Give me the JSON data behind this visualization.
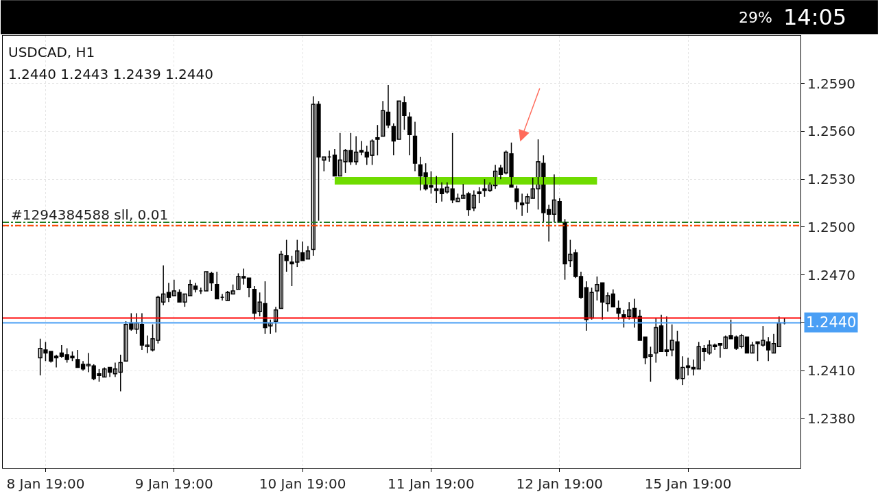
{
  "chart_data": {
    "type": "candlestick",
    "title": "USDCAD, H1",
    "subtitle": "1.2440 1.2443 1.2439 1.2440",
    "annotations": [
      "29%",
      "14:05"
    ],
    "categories": [
      null,
      "8 Jan 19:00",
      null,
      null,
      null,
      null,
      null,
      null,
      null,
      null,
      null,
      null,
      null,
      null,
      null,
      null,
      null,
      null,
      null,
      null,
      null,
      null,
      null,
      null,
      null,
      "9 Jan 19:00",
      null,
      null,
      null,
      null,
      null,
      null,
      null,
      null,
      null,
      null,
      null,
      null,
      null,
      null,
      null,
      null,
      null,
      null,
      null,
      null,
      null,
      null,
      null,
      "10 Jan 19:00",
      null,
      null,
      null,
      null,
      null,
      null,
      null,
      null,
      null,
      null,
      null,
      null,
      null,
      null,
      null,
      null,
      null,
      null,
      null,
      null,
      null,
      null,
      null,
      "11 Jan 19:00",
      null,
      null,
      null,
      null,
      null,
      null,
      null,
      null,
      null,
      null,
      null,
      null,
      null,
      null,
      null,
      null,
      null,
      null,
      null,
      null,
      null,
      null,
      null,
      "12 Jan 19:00",
      null,
      null,
      null,
      null,
      null,
      null,
      null,
      null,
      null,
      null,
      null,
      null,
      null,
      null,
      null,
      null,
      null,
      null,
      null,
      null,
      null,
      null,
      null,
      "15 Jan 19:00",
      null,
      null,
      null,
      null,
      null,
      null,
      null,
      null,
      null,
      null,
      null,
      null,
      null,
      null,
      null,
      null,
      null,
      null
    ],
    "color": "#000000",
    "ohlc": [
      [
        1.2418,
        1.243,
        1.2407,
        1.2424
      ],
      [
        1.2423,
        1.2428,
        1.2416,
        1.2421
      ],
      [
        1.2422,
        1.2422,
        1.2415,
        1.2416
      ],
      [
        1.2419,
        1.242,
        1.2412,
        1.2418
      ],
      [
        1.2421,
        1.2426,
        1.2418,
        1.2419
      ],
      [
        1.242,
        1.2424,
        1.2415,
        1.2417
      ],
      [
        1.2419,
        1.2422,
        1.2416,
        1.2418
      ],
      [
        1.2417,
        1.2423,
        1.2412,
        1.2412
      ],
      [
        1.2414,
        1.2416,
        1.241,
        1.2411
      ],
      [
        1.2413,
        1.2421,
        1.2409,
        1.2414
      ],
      [
        1.2413,
        1.2414,
        1.2404,
        1.2405
      ],
      [
        1.2408,
        1.2411,
        1.2403,
        1.2407
      ],
      [
        1.2406,
        1.2412,
        1.2406,
        1.2411
      ],
      [
        1.2412,
        1.2412,
        1.2406,
        1.2409
      ],
      [
        1.2408,
        1.2415,
        1.2406,
        1.2411
      ],
      [
        1.2409,
        1.242,
        1.2397,
        1.2415
      ],
      [
        1.2416,
        1.2441,
        1.2416,
        1.2439
      ],
      [
        1.244,
        1.2446,
        1.2435,
        1.2436
      ],
      [
        1.2436,
        1.2446,
        1.2433,
        1.244
      ],
      [
        1.2439,
        1.2446,
        1.2423,
        1.2426
      ],
      [
        1.2425,
        1.2432,
        1.2421,
        1.2426
      ],
      [
        1.2423,
        1.2439,
        1.2422,
        1.243
      ],
      [
        1.2429,
        1.2457,
        1.2427,
        1.2456
      ],
      [
        1.2453,
        1.2476,
        1.2451,
        1.2458
      ],
      [
        1.2459,
        1.2465,
        1.2453,
        1.2456
      ],
      [
        1.2457,
        1.2467,
        1.2457,
        1.246
      ],
      [
        1.2459,
        1.2461,
        1.2453,
        1.2453
      ],
      [
        1.2453,
        1.2458,
        1.245,
        1.2458
      ],
      [
        1.2457,
        1.2467,
        1.2457,
        1.2464
      ],
      [
        1.2463,
        1.2465,
        1.2459,
        1.2461
      ],
      [
        1.246,
        1.2462,
        1.2458,
        1.246
      ],
      [
        1.246,
        1.2472,
        1.246,
        1.2472
      ],
      [
        1.2471,
        1.2472,
        1.246,
        1.2465
      ],
      [
        1.2464,
        1.2472,
        1.2455,
        1.2455
      ],
      [
        1.2456,
        1.2458,
        1.2454,
        1.2456
      ],
      [
        1.2454,
        1.246,
        1.2454,
        1.2459
      ],
      [
        1.2458,
        1.2464,
        1.2458,
        1.246
      ],
      [
        1.2461,
        1.2471,
        1.2461,
        1.2469
      ],
      [
        1.2469,
        1.2474,
        1.2464,
        1.2468
      ],
      [
        1.2468,
        1.2468,
        1.2456,
        1.2462
      ],
      [
        1.2461,
        1.2463,
        1.2442,
        1.2446
      ],
      [
        1.2447,
        1.2459,
        1.2444,
        1.2453
      ],
      [
        1.2452,
        1.2466,
        1.2433,
        1.2437
      ],
      [
        1.2438,
        1.2442,
        1.2433,
        1.244
      ],
      [
        1.2441,
        1.245,
        1.2434,
        1.2448
      ],
      [
        1.2449,
        1.2485,
        1.2449,
        1.2483
      ],
      [
        1.2482,
        1.2492,
        1.2472,
        1.2479
      ],
      [
        1.2478,
        1.2482,
        1.2463,
        1.2477
      ],
      [
        1.2478,
        1.2492,
        1.2475,
        1.2485
      ],
      [
        1.2484,
        1.2491,
        1.2479,
        1.2479
      ],
      [
        1.248,
        1.2488,
        1.248,
        1.2485
      ],
      [
        1.2486,
        1.2582,
        1.2482,
        1.2577
      ],
      [
        1.2577,
        1.2579,
        1.2504,
        1.2544
      ],
      [
        1.2542,
        1.2544,
        1.2535,
        1.2544
      ],
      [
        1.2544,
        1.2548,
        1.2541,
        1.2544
      ],
      [
        1.2545,
        1.2549,
        1.2532,
        1.2532
      ],
      [
        1.2532,
        1.2559,
        1.2532,
        1.2542
      ],
      [
        1.2541,
        1.2549,
        1.2534,
        1.2548
      ],
      [
        1.2548,
        1.2559,
        1.2539,
        1.2541
      ],
      [
        1.2541,
        1.2557,
        1.2539,
        1.2547
      ],
      [
        1.2548,
        1.2554,
        1.2545,
        1.2547
      ],
      [
        1.2547,
        1.2551,
        1.2539,
        1.2544
      ],
      [
        1.2545,
        1.2555,
        1.2539,
        1.2554
      ],
      [
        1.2556,
        1.2564,
        1.2545,
        1.2555
      ],
      [
        1.2557,
        1.2579,
        1.2557,
        1.2573
      ],
      [
        1.2572,
        1.2589,
        1.2562,
        1.2564
      ],
      [
        1.2563,
        1.2565,
        1.2545,
        1.2554
      ],
      [
        1.2555,
        1.2579,
        1.2555,
        1.2579
      ],
      [
        1.2578,
        1.2582,
        1.2561,
        1.257
      ],
      [
        1.2569,
        1.2572,
        1.2545,
        1.2558
      ],
      [
        1.2557,
        1.2566,
        1.2535,
        1.254
      ],
      [
        1.2539,
        1.2544,
        1.2523,
        1.2532
      ],
      [
        1.2534,
        1.254,
        1.2523,
        1.2524
      ],
      [
        1.2526,
        1.2535,
        1.2521,
        1.2525
      ],
      [
        1.2524,
        1.2532,
        1.2515,
        1.2523
      ],
      [
        1.2524,
        1.2528,
        1.2516,
        1.2521
      ],
      [
        1.2522,
        1.2528,
        1.2521,
        1.2525
      ],
      [
        1.2524,
        1.2559,
        1.2515,
        1.2517
      ],
      [
        1.2516,
        1.2521,
        1.2516,
        1.2518
      ],
      [
        1.2518,
        1.2527,
        1.2518,
        1.252
      ],
      [
        1.2521,
        1.2522,
        1.2507,
        1.2511
      ],
      [
        1.2512,
        1.2523,
        1.251,
        1.252
      ],
      [
        1.2522,
        1.2525,
        1.2515,
        1.2521
      ],
      [
        1.2524,
        1.253,
        1.2519,
        1.2523
      ],
      [
        1.2523,
        1.2528,
        1.2522,
        1.2527
      ],
      [
        1.2526,
        1.2539,
        1.2524,
        1.2535
      ],
      [
        1.2537,
        1.2539,
        1.253,
        1.2533
      ],
      [
        1.2534,
        1.2548,
        1.2533,
        1.2547
      ],
      [
        1.2546,
        1.2553,
        1.2525,
        1.2525
      ],
      [
        1.2524,
        1.2526,
        1.2511,
        1.2516
      ],
      [
        1.2515,
        1.2521,
        1.2507,
        1.2514
      ],
      [
        1.2515,
        1.2521,
        1.2509,
        1.2519
      ],
      [
        1.2518,
        1.2531,
        1.2518,
        1.2524
      ],
      [
        1.2524,
        1.2555,
        1.2511,
        1.2541
      ],
      [
        1.254,
        1.2545,
        1.2503,
        1.2509
      ],
      [
        1.2511,
        1.2514,
        1.2491,
        1.2508
      ],
      [
        1.2508,
        1.2533,
        1.2503,
        1.2517
      ],
      [
        1.2516,
        1.2518,
        1.2503,
        1.2503
      ],
      [
        1.2503,
        1.2505,
        1.2467,
        1.2477
      ],
      [
        1.2479,
        1.2492,
        1.2475,
        1.2483
      ],
      [
        1.2484,
        1.2486,
        1.2468,
        1.2469
      ],
      [
        1.2469,
        1.2472,
        1.2455,
        1.2456
      ],
      [
        1.2462,
        1.2466,
        1.2435,
        1.2442
      ],
      [
        1.2443,
        1.2462,
        1.2442,
        1.2459
      ],
      [
        1.246,
        1.2469,
        1.2454,
        1.2464
      ],
      [
        1.2465,
        1.2465,
        1.2442,
        1.2453
      ],
      [
        1.2452,
        1.2459,
        1.2447,
        1.2457
      ],
      [
        1.2458,
        1.2461,
        1.245,
        1.245
      ],
      [
        1.2449,
        1.2454,
        1.2442,
        1.2446
      ],
      [
        1.2445,
        1.2448,
        1.2437,
        1.2443
      ],
      [
        1.2444,
        1.2453,
        1.2442,
        1.2448
      ],
      [
        1.2449,
        1.2455,
        1.2437,
        1.2443
      ],
      [
        1.2444,
        1.2448,
        1.2429,
        1.2429
      ],
      [
        1.2431,
        1.2431,
        1.2414,
        1.2418
      ],
      [
        1.2419,
        1.2425,
        1.2403,
        1.242
      ],
      [
        1.2421,
        1.2443,
        1.2415,
        1.2437
      ],
      [
        1.2438,
        1.2445,
        1.2422,
        1.2422
      ],
      [
        1.2423,
        1.2444,
        1.2419,
        1.2422
      ],
      [
        1.2423,
        1.2439,
        1.2419,
        1.2429
      ],
      [
        1.2428,
        1.2435,
        1.2404,
        1.2405
      ],
      [
        1.2405,
        1.2419,
        1.2401,
        1.2412
      ],
      [
        1.2413,
        1.2418,
        1.2407,
        1.2412
      ],
      [
        1.2412,
        1.2417,
        1.2407,
        1.2411
      ],
      [
        1.2411,
        1.2428,
        1.2411,
        1.2425
      ],
      [
        1.2424,
        1.2426,
        1.2416,
        1.2422
      ],
      [
        1.2421,
        1.2429,
        1.242,
        1.2426
      ],
      [
        1.2426,
        1.2427,
        1.2423,
        1.2425
      ],
      [
        1.2427,
        1.2427,
        1.2418,
        1.2426
      ],
      [
        1.2424,
        1.2432,
        1.2424,
        1.2431
      ],
      [
        1.2432,
        1.2442,
        1.243,
        1.243
      ],
      [
        1.2431,
        1.2432,
        1.2423,
        1.2424
      ],
      [
        1.2425,
        1.2433,
        1.2424,
        1.2432
      ],
      [
        1.2431,
        1.2431,
        1.2421,
        1.2421
      ],
      [
        1.2421,
        1.2428,
        1.2421,
        1.2426
      ],
      [
        1.2428,
        1.2428,
        1.2416,
        1.2427
      ],
      [
        1.2426,
        1.2438,
        1.2425,
        1.2429
      ],
      [
        1.2428,
        1.2431,
        1.2416,
        1.2423
      ],
      [
        1.2421,
        1.2433,
        1.2421,
        1.2427
      ],
      [
        1.2425,
        1.2444,
        1.2425,
        1.244
      ],
      [
        1.244,
        1.2443,
        1.2439,
        1.244
      ]
    ],
    "series": [
      {
        "type": "line",
        "color": "#6fdc00",
        "values": [
          null,
          null,
          null,
          null,
          null,
          null,
          null,
          null,
          null,
          null,
          null,
          null,
          null,
          null,
          null,
          null,
          null,
          null,
          null,
          null,
          null,
          null,
          null,
          null,
          null,
          null,
          null,
          null,
          null,
          null,
          null,
          null,
          null,
          null,
          null,
          null,
          null,
          null,
          null,
          null,
          null,
          null,
          null,
          null,
          null,
          null,
          null,
          null,
          null,
          null,
          null,
          null,
          null,
          null,
          null,
          1.2529,
          1.2529,
          1.2529,
          1.2529,
          1.2529,
          1.2529,
          1.2529,
          1.2529,
          1.2529,
          1.2529,
          1.2529,
          1.2529,
          1.2529,
          1.2529,
          1.2529,
          1.2529,
          1.2529,
          1.2529,
          1.2529,
          1.2529,
          1.2529,
          1.2529,
          1.2529,
          1.2529,
          1.2529,
          1.2529,
          1.2529,
          1.2529,
          1.2529,
          1.2529,
          1.2529,
          1.2529,
          1.2529,
          1.2529,
          1.2529,
          1.2529,
          1.2529,
          1.2529,
          1.2529,
          1.2529,
          1.2529,
          1.2529,
          1.2529,
          1.2529,
          1.2529,
          1.2529,
          1.2529,
          1.2529,
          1.2529,
          1.2529,
          null,
          null,
          null,
          null,
          null,
          null,
          null,
          null,
          null,
          null,
          null,
          null,
          null,
          null,
          null,
          null,
          null,
          null,
          null,
          null,
          null,
          null,
          null,
          null,
          null,
          null,
          null,
          null,
          null,
          null,
          null,
          null,
          null,
          null,
          null
        ]
      }
    ],
    "ref_lines": [
      {
        "axis": "y",
        "value": 1.2503,
        "color": "#1e7b1e",
        "line_style": "dashdot"
      },
      {
        "axis": "y",
        "value": 1.2501,
        "color": "#ff4500",
        "line_style": "dashdot",
        "label": "#1294384588 sll, 0.01"
      },
      {
        "axis": "y",
        "value": 1.2443,
        "color": "#ff0000",
        "line_style": "solid"
      },
      {
        "axis": "y",
        "value": 1.244,
        "color": "#4a9ff5",
        "line_style": "solid",
        "label": "1.2440"
      }
    ],
    "ylim": [
      1.2349,
      1.262
    ],
    "yticks": [
      {
        "value": 1.238,
        "label": "1.2380"
      },
      {
        "value": 1.241,
        "label": "1.2410"
      },
      {
        "value": 1.244,
        "label": "1.2440"
      },
      {
        "value": 1.247,
        "label": "1.2470"
      },
      {
        "value": 1.25,
        "label": "1.2500"
      },
      {
        "value": 1.253,
        "label": "1.2530"
      },
      {
        "value": 1.256,
        "label": "1.2560"
      },
      {
        "value": 1.259,
        "label": "1.2590"
      }
    ],
    "grid": true
  }
}
